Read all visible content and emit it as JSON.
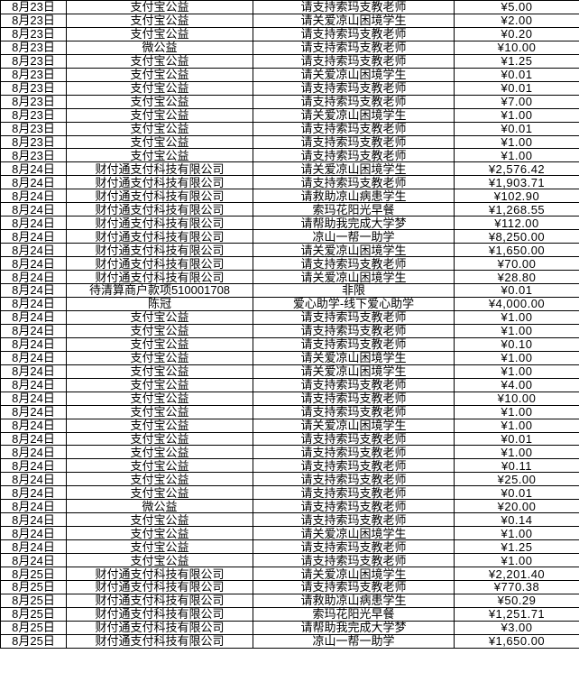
{
  "colors": {
    "background": "#ffffff",
    "text": "#000000",
    "grid_border": "#000000"
  },
  "table": {
    "rows": [
      {
        "date": "8月23日",
        "payer": "支付宝公益",
        "project": "请支持索玛支教老师",
        "amount": "¥5.00"
      },
      {
        "date": "8月23日",
        "payer": "支付宝公益",
        "project": "请关爱凉山困境学生",
        "amount": "¥2.00"
      },
      {
        "date": "8月23日",
        "payer": "支付宝公益",
        "project": "请支持索玛支教老师",
        "amount": "¥0.20"
      },
      {
        "date": "8月23日",
        "payer": "微公益",
        "project": "请支持索玛支教老师",
        "amount": "¥10.00"
      },
      {
        "date": "8月23日",
        "payer": "支付宝公益",
        "project": "请支持索玛支教老师",
        "amount": "¥1.25"
      },
      {
        "date": "8月23日",
        "payer": "支付宝公益",
        "project": "请关爱凉山困境学生",
        "amount": "¥0.01"
      },
      {
        "date": "8月23日",
        "payer": "支付宝公益",
        "project": "请支持索玛支教老师",
        "amount": "¥0.01"
      },
      {
        "date": "8月23日",
        "payer": "支付宝公益",
        "project": "请支持索玛支教老师",
        "amount": "¥7.00"
      },
      {
        "date": "8月23日",
        "payer": "支付宝公益",
        "project": "请关爱凉山困境学生",
        "amount": "¥1.00"
      },
      {
        "date": "8月23日",
        "payer": "支付宝公益",
        "project": "请支持索玛支教老师",
        "amount": "¥0.01"
      },
      {
        "date": "8月23日",
        "payer": "支付宝公益",
        "project": "请支持索玛支教老师",
        "amount": "¥1.00"
      },
      {
        "date": "8月23日",
        "payer": "支付宝公益",
        "project": "请支持索玛支教老师",
        "amount": "¥1.00"
      },
      {
        "date": "8月24日",
        "payer": "财付通支付科技有限公司",
        "project": "请关爱凉山困境学生",
        "amount": "¥2,576.42"
      },
      {
        "date": "8月24日",
        "payer": "财付通支付科技有限公司",
        "project": "请支持索玛支教老师",
        "amount": "¥1,903.71"
      },
      {
        "date": "8月24日",
        "payer": "财付通支付科技有限公司",
        "project": "请救助凉山病患学生",
        "amount": "¥102.90"
      },
      {
        "date": "8月24日",
        "payer": "财付通支付科技有限公司",
        "project": "索玛花阳光早餐",
        "amount": "¥1,268.55"
      },
      {
        "date": "8月24日",
        "payer": "财付通支付科技有限公司",
        "project": "请帮助我完成大学梦",
        "amount": "¥112.00"
      },
      {
        "date": "8月24日",
        "payer": "财付通支付科技有限公司",
        "project": "凉山一帮一助学",
        "amount": "¥8,250.00"
      },
      {
        "date": "8月24日",
        "payer": "财付通支付科技有限公司",
        "project": "请关爱凉山困境学生",
        "amount": "¥1,650.00"
      },
      {
        "date": "8月24日",
        "payer": "财付通支付科技有限公司",
        "project": "请支持索玛支教老师",
        "amount": "¥70.00"
      },
      {
        "date": "8月24日",
        "payer": "财付通支付科技有限公司",
        "project": "请关爱凉山困境学生",
        "amount": "¥28.80"
      },
      {
        "date": "8月24日",
        "payer": "待清算商户款项510001708",
        "project": "非限",
        "amount": "¥0.01"
      },
      {
        "date": "8月24日",
        "payer": "陈冠",
        "project": "爱心助学-线下爱心助学",
        "amount": "¥4,000.00"
      },
      {
        "date": "8月24日",
        "payer": "支付宝公益",
        "project": "请支持索玛支教老师",
        "amount": "¥1.00"
      },
      {
        "date": "8月24日",
        "payer": "支付宝公益",
        "project": "请支持索玛支教老师",
        "amount": "¥1.00"
      },
      {
        "date": "8月24日",
        "payer": "支付宝公益",
        "project": "请支持索玛支教老师",
        "amount": "¥0.10"
      },
      {
        "date": "8月24日",
        "payer": "支付宝公益",
        "project": "请关爱凉山困境学生",
        "amount": "¥1.00"
      },
      {
        "date": "8月24日",
        "payer": "支付宝公益",
        "project": "请关爱凉山困境学生",
        "amount": "¥1.00"
      },
      {
        "date": "8月24日",
        "payer": "支付宝公益",
        "project": "请支持索玛支教老师",
        "amount": "¥4.00"
      },
      {
        "date": "8月24日",
        "payer": "支付宝公益",
        "project": "请支持索玛支教老师",
        "amount": "¥10.00"
      },
      {
        "date": "8月24日",
        "payer": "支付宝公益",
        "project": "请支持索玛支教老师",
        "amount": "¥1.00"
      },
      {
        "date": "8月24日",
        "payer": "支付宝公益",
        "project": "请关爱凉山困境学生",
        "amount": "¥1.00"
      },
      {
        "date": "8月24日",
        "payer": "支付宝公益",
        "project": "请支持索玛支教老师",
        "amount": "¥0.01"
      },
      {
        "date": "8月24日",
        "payer": "支付宝公益",
        "project": "请支持索玛支教老师",
        "amount": "¥1.00"
      },
      {
        "date": "8月24日",
        "payer": "支付宝公益",
        "project": "请支持索玛支教老师",
        "amount": "¥0.11"
      },
      {
        "date": "8月24日",
        "payer": "支付宝公益",
        "project": "请支持索玛支教老师",
        "amount": "¥25.00"
      },
      {
        "date": "8月24日",
        "payer": "支付宝公益",
        "project": "请支持索玛支教老师",
        "amount": "¥0.01"
      },
      {
        "date": "8月24日",
        "payer": "微公益",
        "project": "请支持索玛支教老师",
        "amount": "¥20.00"
      },
      {
        "date": "8月24日",
        "payer": "支付宝公益",
        "project": "请支持索玛支教老师",
        "amount": "¥0.14"
      },
      {
        "date": "8月24日",
        "payer": "支付宝公益",
        "project": "请关爱凉山困境学生",
        "amount": "¥1.00"
      },
      {
        "date": "8月24日",
        "payer": "支付宝公益",
        "project": "请支持索玛支教老师",
        "amount": "¥1.25"
      },
      {
        "date": "8月24日",
        "payer": "支付宝公益",
        "project": "请支持索玛支教老师",
        "amount": "¥1.00"
      },
      {
        "date": "8月25日",
        "payer": "财付通支付科技有限公司",
        "project": "请关爱凉山困境学生",
        "amount": "¥2,201.40"
      },
      {
        "date": "8月25日",
        "payer": "财付通支付科技有限公司",
        "project": "请支持索玛支教老师",
        "amount": "¥770.38"
      },
      {
        "date": "8月25日",
        "payer": "财付通支付科技有限公司",
        "project": "请救助凉山病患学生",
        "amount": "¥50.29"
      },
      {
        "date": "8月25日",
        "payer": "财付通支付科技有限公司",
        "project": "索玛花阳光早餐",
        "amount": "¥1,251.71"
      },
      {
        "date": "8月25日",
        "payer": "财付通支付科技有限公司",
        "project": "请帮助我完成大学梦",
        "amount": "¥3.00"
      },
      {
        "date": "8月25日",
        "payer": "财付通支付科技有限公司",
        "project": "凉山一帮一助学",
        "amount": "¥1,650.00"
      }
    ]
  }
}
